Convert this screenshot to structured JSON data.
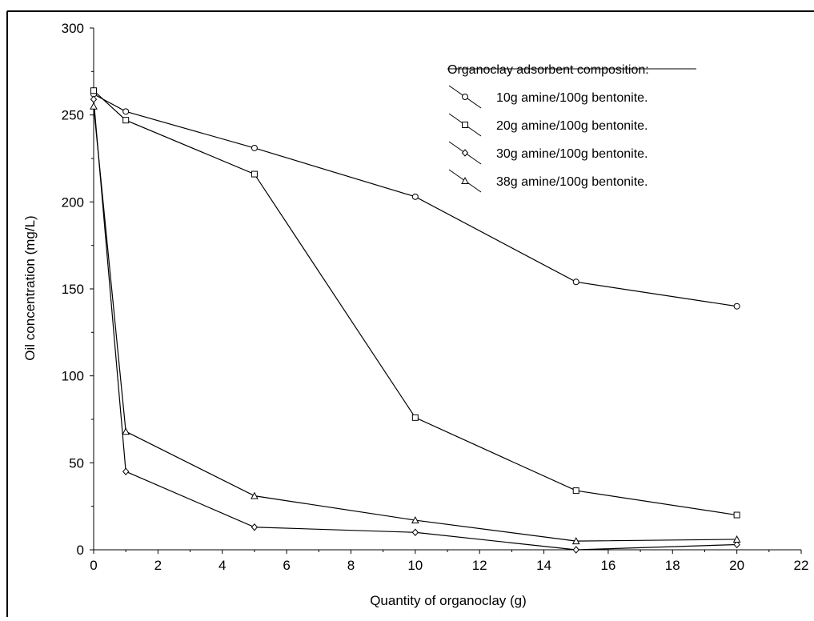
{
  "chart_data": {
    "type": "line",
    "title": "",
    "xlabel": "Quantity of organoclay (g)",
    "ylabel": "Oil concentration (mg/L)",
    "xlim": [
      0,
      22
    ],
    "ylim": [
      0,
      300
    ],
    "xticks": [
      0,
      2,
      4,
      6,
      8,
      10,
      12,
      14,
      16,
      18,
      20,
      22
    ],
    "yticks": [
      0,
      50,
      100,
      150,
      200,
      250,
      300
    ],
    "grid": false,
    "legend_position": "top-right",
    "legend_title": "Organoclay adsorbent composition:",
    "series": [
      {
        "name": "10g amine/100g bentonite.",
        "marker": "circle",
        "x": [
          0,
          1,
          5,
          10,
          15,
          20
        ],
        "y": [
          262,
          252,
          231,
          203,
          154,
          140
        ]
      },
      {
        "name": "20g amine/100g bentonite.",
        "marker": "square",
        "x": [
          0,
          1,
          5,
          10,
          15,
          20
        ],
        "y": [
          264,
          247,
          216,
          76,
          34,
          20
        ]
      },
      {
        "name": "30g amine/100g bentonite.",
        "marker": "diamond",
        "x": [
          0,
          1,
          5,
          10,
          15,
          20
        ],
        "y": [
          259,
          45,
          13,
          10,
          0,
          3
        ]
      },
      {
        "name": "38g amine/100g bentonite.",
        "marker": "triangle",
        "x": [
          0,
          1,
          5,
          10,
          15,
          20
        ],
        "y": [
          255,
          68,
          31,
          17,
          5,
          6
        ]
      }
    ]
  }
}
